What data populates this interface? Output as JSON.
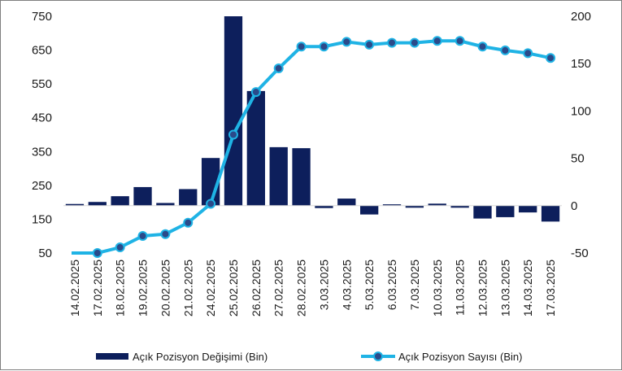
{
  "chart_data": {
    "type": "bar+line",
    "categories": [
      "14.02.2025",
      "17.02.2025",
      "18.02.2025",
      "19.02.2025",
      "20.02.2025",
      "21.02.2025",
      "24.02.2025",
      "25.02.2025",
      "26.02.2025",
      "27.02.2025",
      "28.02.2025",
      "3.03.2025",
      "4.03.2025",
      "5.03.2025",
      "6.03.2025",
      "7.03.2025",
      "10.03.2025",
      "11.03.2025",
      "12.03.2025",
      "13.03.2025",
      "14.03.2025",
      "17.03.2025"
    ],
    "series": [
      {
        "name": "Açık Pozisyon Değişimi (Bin)",
        "type": "bar",
        "axis": "left",
        "color": "#0d1f5c",
        "values": [
          5,
          11,
          28,
          55,
          8,
          49,
          141,
          758,
          339,
          173,
          170,
          -7,
          21,
          -26,
          4,
          -6,
          6,
          -6,
          -38,
          -34,
          -20,
          -47
        ]
      },
      {
        "name": "Açık Pozisyon Sayısı (Bin)",
        "type": "line",
        "axis": "right",
        "color": "#1fb3e5",
        "marker_fill": "#2b4a8a",
        "values": [
          -54,
          -50,
          -44,
          -32,
          -30,
          -18,
          2,
          75,
          120,
          145,
          168,
          168,
          173,
          170,
          172,
          172,
          174,
          174,
          168,
          164,
          161,
          156
        ]
      }
    ],
    "y_left": {
      "ticks": [
        50,
        150,
        250,
        350,
        450,
        550,
        650,
        750
      ],
      "baseline": 190
    },
    "y_right": {
      "ticks": [
        -50,
        0,
        50,
        100,
        150,
        200
      ]
    },
    "grid": false,
    "legend": "bottom"
  }
}
